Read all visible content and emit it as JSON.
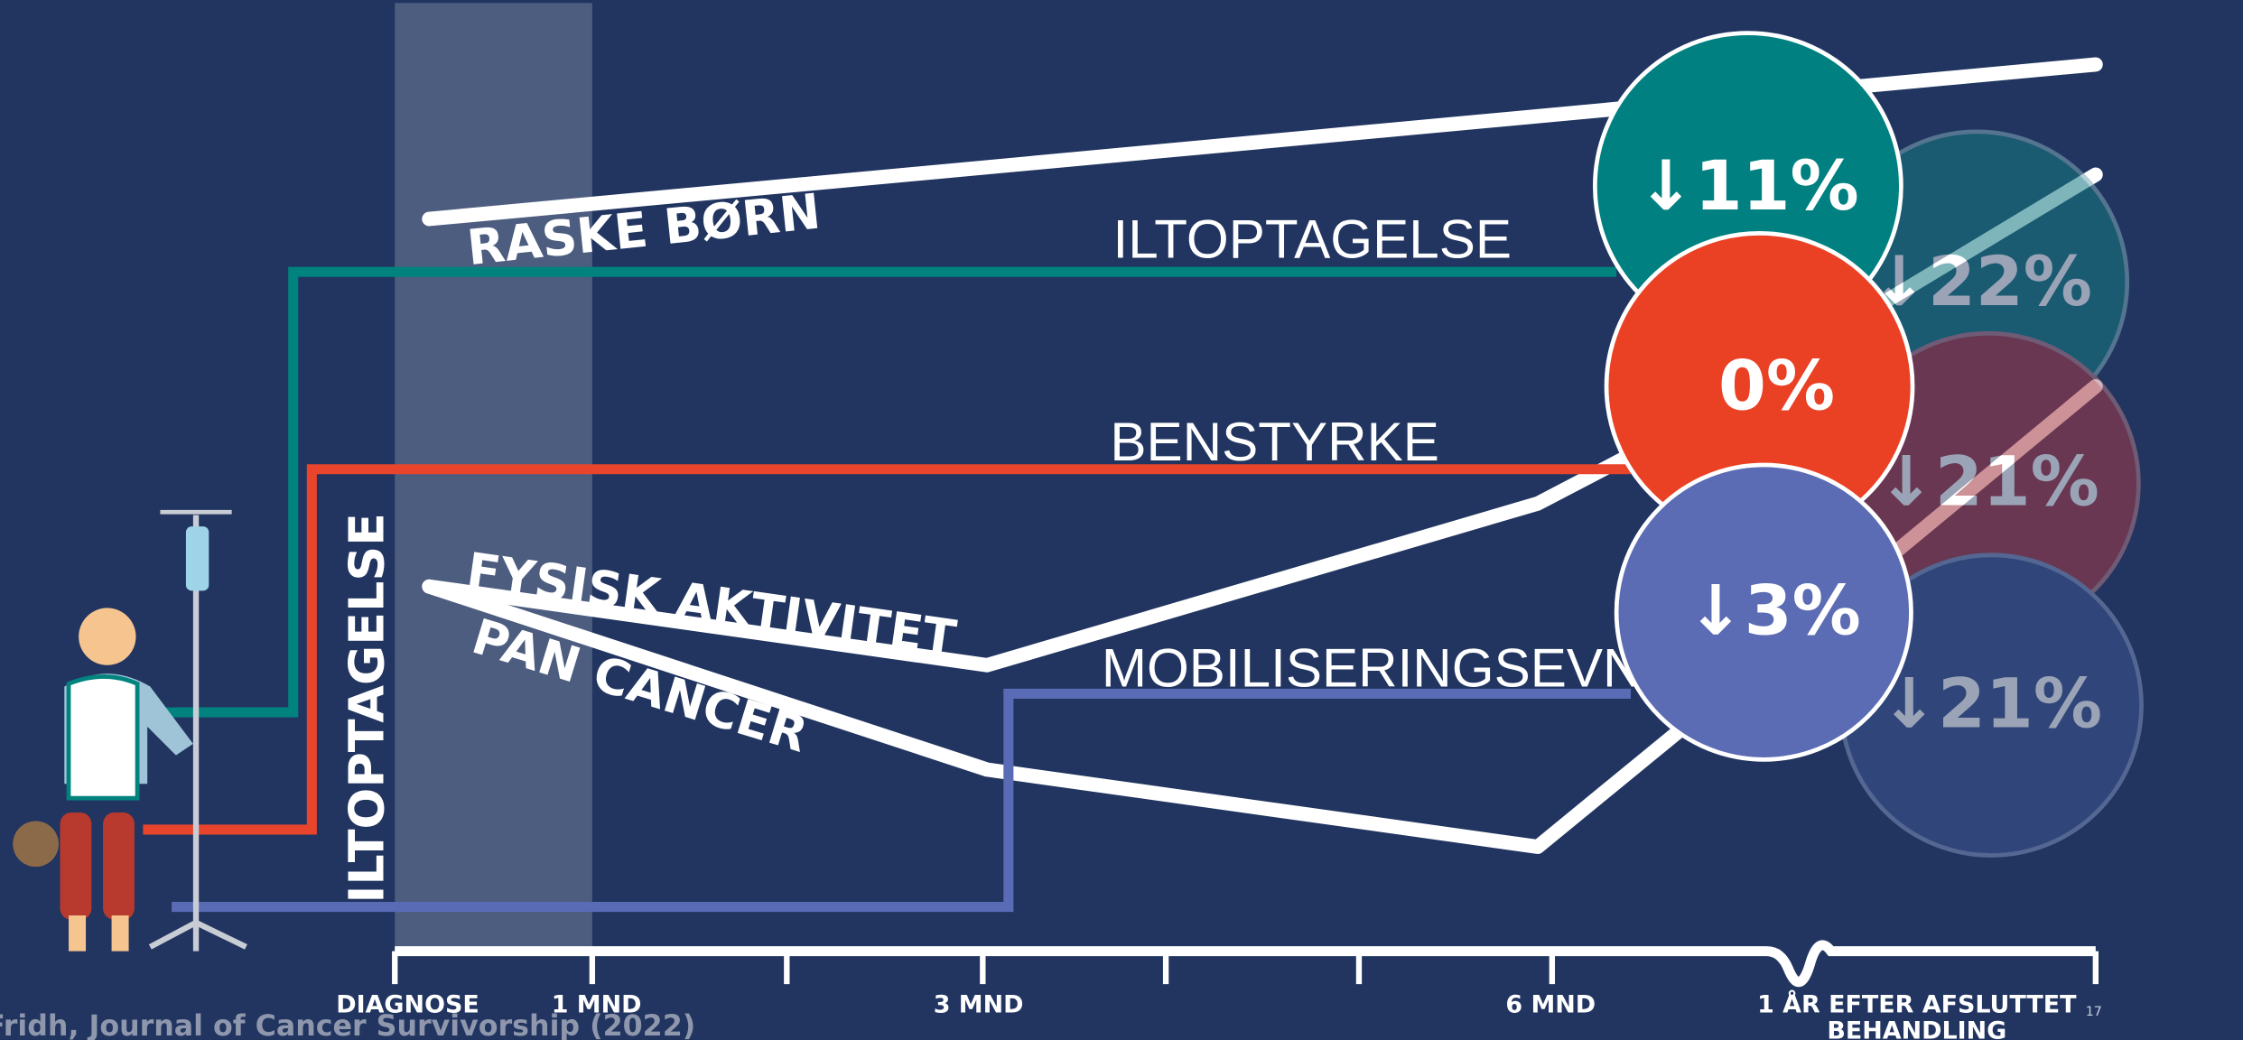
{
  "labels": {
    "healthy": "RASKE BØRN",
    "oxygen": "ILTOPTAGELSE",
    "leg": "BENSTYRKE",
    "activity": "FYSISK AKTIVITET",
    "pan": "PAN CANCER",
    "mobility": "MOBILISERINGSEVNE",
    "vertical": "ILTOPTAGELSE"
  },
  "circles": {
    "oxygen": "↓11%",
    "leg": "0%",
    "mobility": "↓3%"
  },
  "faded_circles": {
    "oxygen": "↓22%",
    "leg": "↓21%",
    "mobility": "↓21%"
  },
  "axis": {
    "ticks": [
      "DIAGNOSE",
      "1 MND",
      "3 MND",
      "6 MND"
    ],
    "end": [
      "1 ÅR EFTER AFSLUTTET",
      "BEHANDLING"
    ]
  },
  "citation": "Fridh, Journal of Cancer Survivorship (2022)",
  "page_number": "17"
}
